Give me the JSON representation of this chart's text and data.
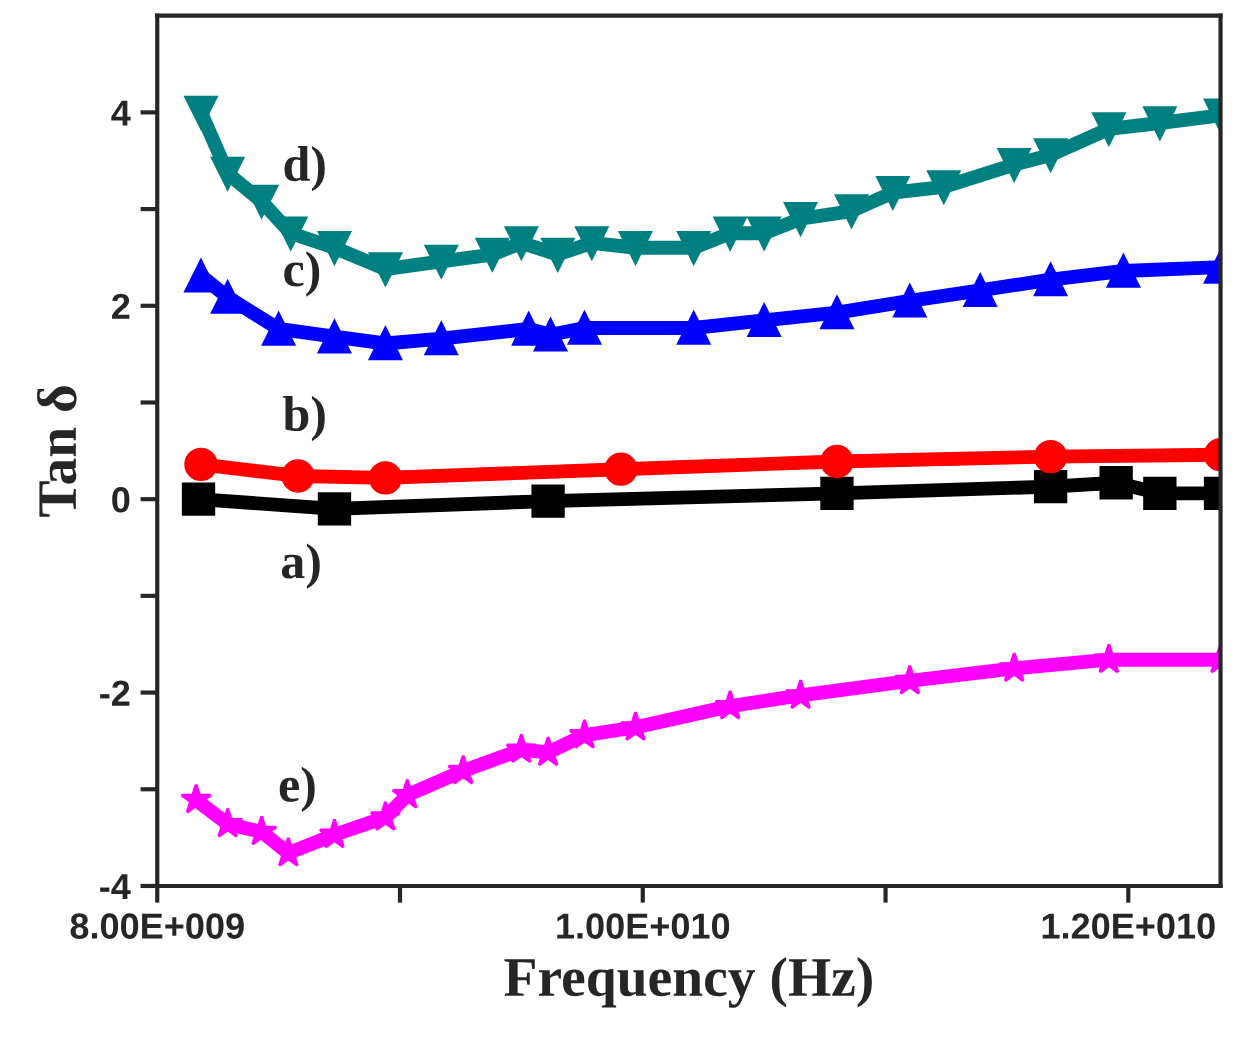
{
  "chart_data": {
    "type": "line",
    "xlabel": "Frequency (Hz)",
    "ylabel": "Tan δ",
    "xlim": [
      8000000000,
      12380000000
    ],
    "ylim": [
      -4,
      5
    ],
    "xticks": [
      {
        "value": 8000000000,
        "label": "8.00E+009"
      },
      {
        "value": 9000000000,
        "label": null
      },
      {
        "value": 10000000000,
        "label": "1.00E+010"
      },
      {
        "value": 11000000000,
        "label": null
      },
      {
        "value": 12000000000,
        "label": "1.20E+010"
      }
    ],
    "yticks": [
      {
        "value": -4,
        "label": "-4"
      },
      {
        "value": -3,
        "label": null
      },
      {
        "value": -2,
        "label": "-2"
      },
      {
        "value": -1,
        "label": null
      },
      {
        "value": 0,
        "label": "0"
      },
      {
        "value": 1,
        "label": null
      },
      {
        "value": 2,
        "label": "2"
      },
      {
        "value": 3,
        "label": null
      },
      {
        "value": 4,
        "label": "4"
      }
    ],
    "grid": false,
    "series": [
      {
        "name": "a)",
        "color": "#000000",
        "marker": "square",
        "x": [
          8170000000.0,
          8730000000.0,
          9610000000.0,
          10800000000.0,
          11680000000.0,
          11950000000.0,
          12130000000.0,
          12380000000.0
        ],
        "values": [
          0.0,
          -0.1,
          -0.02,
          0.06,
          0.13,
          0.17,
          0.06,
          0.06
        ]
      },
      {
        "name": "b)",
        "color": "#ff0000",
        "marker": "circle",
        "x": [
          8180000000.0,
          8580000000.0,
          8940000000.0,
          9910000000.0,
          10800000000.0,
          11680000000.0,
          12380000000.0
        ],
        "values": [
          0.36,
          0.24,
          0.22,
          0.31,
          0.39,
          0.44,
          0.46
        ]
      },
      {
        "name": "c)",
        "color": "#0000ff",
        "marker": "triangle",
        "x": [
          8180000000.0,
          8290000000.0,
          8500000000.0,
          8730000000.0,
          8940000000.0,
          9170000000.0,
          9530000000.0,
          9620000000.0,
          9760000000.0,
          10210000000.0,
          10500000000.0,
          10800000000.0,
          11100000000.0,
          11390000000.0,
          11680000000.0,
          11980000000.0,
          12380000000.0
        ],
        "values": [
          2.31,
          2.09,
          1.76,
          1.68,
          1.61,
          1.66,
          1.76,
          1.7,
          1.77,
          1.77,
          1.85,
          1.93,
          2.05,
          2.16,
          2.27,
          2.36,
          2.4
        ]
      },
      {
        "name": "d)",
        "color": "#008080",
        "marker": "triangle_down",
        "x": [
          8180000000.0,
          8290000000.0,
          8430000000.0,
          8550000000.0,
          8730000000.0,
          8940000000.0,
          9170000000.0,
          9380000000.0,
          9500000000.0,
          9650000000.0,
          9790000000.0,
          9970000000.0,
          10210000000.0,
          10360000000.0,
          10500000000.0,
          10650000000.0,
          10860000000.0,
          11030000000.0,
          11240000000.0,
          11530000000.0,
          11680000000.0,
          11920000000.0,
          12130000000.0,
          12380000000.0
        ],
        "values": [
          4.0,
          3.37,
          3.08,
          2.75,
          2.6,
          2.38,
          2.46,
          2.53,
          2.65,
          2.53,
          2.65,
          2.6,
          2.6,
          2.75,
          2.75,
          2.9,
          2.98,
          3.17,
          3.23,
          3.46,
          3.56,
          3.83,
          3.89,
          3.97
        ]
      },
      {
        "name": "e)",
        "color": "#ff00ff",
        "marker": "star",
        "x": [
          8160000000.0,
          8290000000.0,
          8430000000.0,
          8540000000.0,
          8730000000.0,
          8940000000.0,
          9030000000.0,
          9260000000.0,
          9500000000.0,
          9610000000.0,
          9760000000.0,
          9970000000.0,
          10360000000.0,
          10650000000.0,
          11100000000.0,
          11530000000.0,
          11920000000.0,
          12380000000.0
        ],
        "values": [
          -3.11,
          -3.36,
          -3.44,
          -3.66,
          -3.47,
          -3.29,
          -3.06,
          -2.81,
          -2.59,
          -2.62,
          -2.44,
          -2.36,
          -2.14,
          -2.03,
          -1.88,
          -1.75,
          -1.66,
          -1.66
        ]
      }
    ]
  }
}
